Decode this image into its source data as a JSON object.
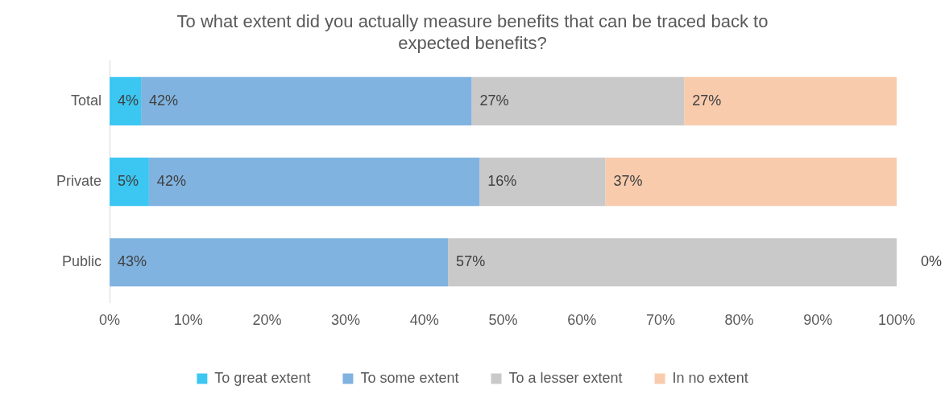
{
  "chart_data": {
    "type": "bar",
    "orientation": "horizontal",
    "stacked": true,
    "title": [
      "To what extent did you actually measure benefits that can be traced back to",
      "expected benefits?"
    ],
    "categories": [
      "Total",
      "Private",
      "Public"
    ],
    "series": [
      {
        "name": "To great extent",
        "color": "#3cc6f2",
        "values": [
          4,
          5,
          0
        ],
        "value_labels": [
          "4%",
          "5%",
          null
        ]
      },
      {
        "name": "To some extent",
        "color": "#80b3e0",
        "values": [
          42,
          42,
          43
        ],
        "value_labels": [
          "42%",
          "42%",
          "43%"
        ]
      },
      {
        "name": "To a lesser extent",
        "color": "#c9c9c9",
        "values": [
          27,
          16,
          57
        ],
        "value_labels": [
          "27%",
          "16%",
          "57%"
        ]
      },
      {
        "name": "In no extent",
        "color": "#f8cbad",
        "values": [
          27,
          37,
          0
        ],
        "value_labels": [
          "27%",
          "37%",
          "0%"
        ]
      }
    ],
    "xlim": [
      0,
      100
    ],
    "xticks": [
      {
        "value": 0,
        "label": "0%"
      },
      {
        "value": 10,
        "label": "10%"
      },
      {
        "value": 20,
        "label": "20%"
      },
      {
        "value": 30,
        "label": "30%"
      },
      {
        "value": 40,
        "label": "40%"
      },
      {
        "value": 50,
        "label": "50%"
      },
      {
        "value": 60,
        "label": "60%"
      },
      {
        "value": 70,
        "label": "70%"
      },
      {
        "value": 80,
        "label": "80%"
      },
      {
        "value": 90,
        "label": "90%"
      },
      {
        "value": 100,
        "label": "100%"
      }
    ],
    "grid": false,
    "legend": "bottom"
  }
}
